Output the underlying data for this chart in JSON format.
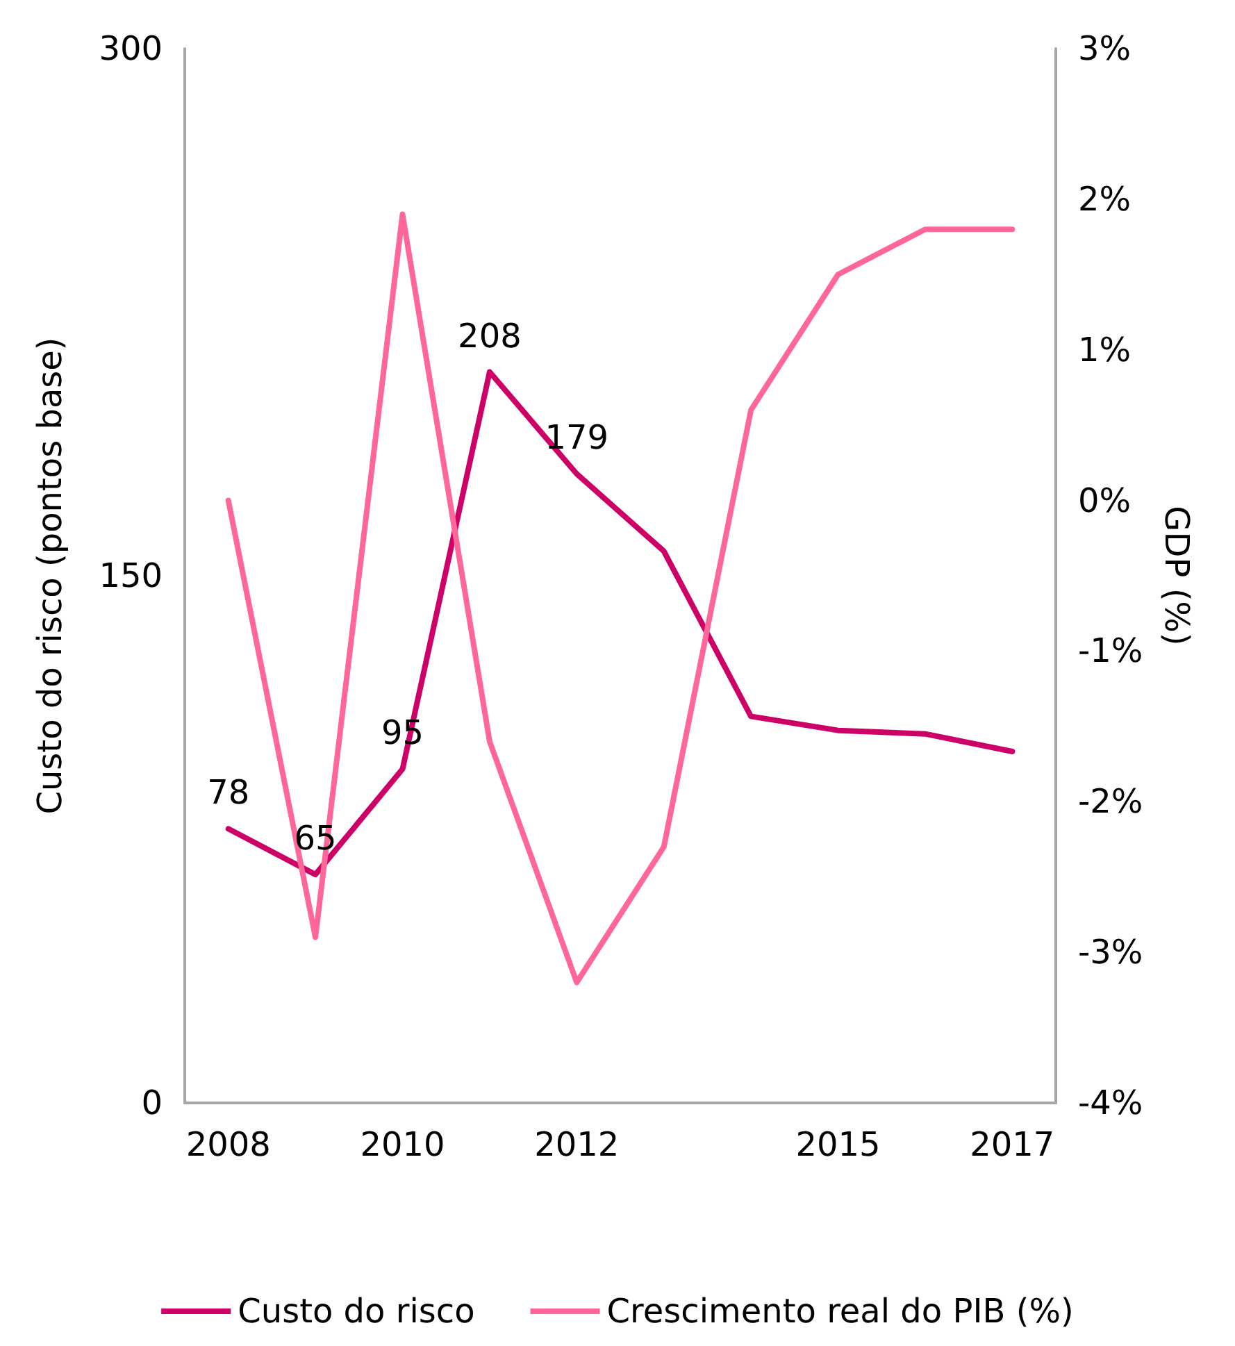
{
  "chart_data": {
    "type": "line",
    "ylabel": "Custo do risco (pontos base)",
    "y2label": "GDP (%)",
    "categories": [
      "2008",
      null,
      "2010",
      null,
      "2012",
      null,
      null,
      "2015",
      null,
      "2017"
    ],
    "series": [
      {
        "name": "Custo do risco",
        "color": "#cc0066",
        "values": [
          78,
          65,
          95,
          208,
          179,
          157,
          110,
          106,
          105,
          100
        ],
        "value_labels": [
          "78",
          "65",
          "95",
          "208",
          "179",
          null,
          null,
          null,
          null,
          null
        ]
      },
      {
        "name": "Crescimento real do PIB (%)",
        "color": "#ff6699",
        "axis": "y2",
        "values": [
          0.0,
          -2.9,
          1.9,
          -1.6,
          -3.2,
          -2.3,
          0.6,
          1.5,
          1.8,
          1.8
        ]
      }
    ],
    "ylim": [
      0,
      300
    ],
    "yticks": [
      0,
      150,
      300
    ],
    "y2lim": [
      -4,
      3
    ],
    "y2ticks": [
      {
        "value": -4,
        "label": "-4%"
      },
      {
        "value": -3,
        "label": "-3%"
      },
      {
        "value": -2,
        "label": "-2%"
      },
      {
        "value": -1,
        "label": "-1%"
      },
      {
        "value": 0,
        "label": "0%"
      },
      {
        "value": 1,
        "label": "1%"
      },
      {
        "value": 2,
        "label": "2%"
      },
      {
        "value": 3,
        "label": "3%"
      }
    ],
    "grid": false,
    "legend": "bottom",
    "marker": "none",
    "line_style": "solid"
  }
}
